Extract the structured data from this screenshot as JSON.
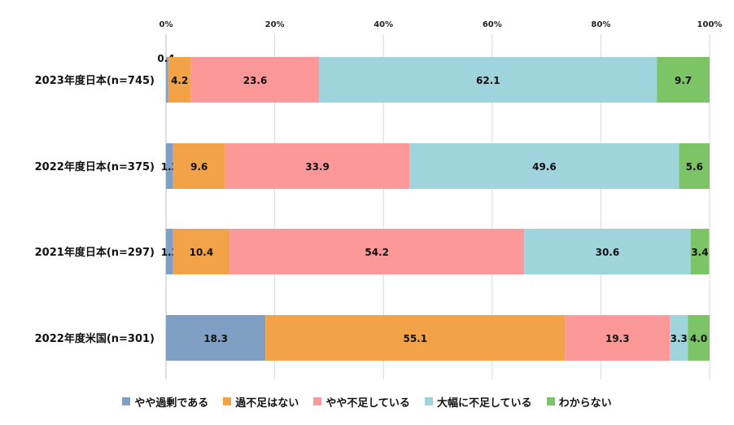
{
  "chart_data": {
    "type": "bar",
    "orientation": "horizontal",
    "stacked": true,
    "categories": [
      "2023年度日本(n=745)",
      "2022年度日本(n=375)",
      "2021年度日本(n=297)",
      "2022年度米国(n=301)"
    ],
    "xlim": [
      0,
      100
    ],
    "x_ticks": [
      "0%",
      "20%",
      "40%",
      "60%",
      "80%",
      "100%"
    ],
    "grid": true,
    "legend_position": "bottom",
    "series": [
      {
        "name": "やや過剰である",
        "color": "#7f9fc4",
        "values": [
          0.4,
          1.3,
          1.3,
          18.3
        ],
        "labels": [
          "0.4",
          "1.3",
          "1.3",
          "18.3"
        ]
      },
      {
        "name": "過不足はない",
        "color": "#f2a247",
        "values": [
          4.2,
          9.6,
          10.4,
          55.1
        ],
        "labels": [
          "4.2",
          "9.6",
          "10.4",
          "55.1"
        ]
      },
      {
        "name": "やや不足している",
        "color": "#fd9898",
        "values": [
          23.6,
          33.9,
          54.2,
          19.3
        ],
        "labels": [
          "23.6",
          "33.9",
          "54.2",
          "19.3"
        ]
      },
      {
        "name": "大幅に不足している",
        "color": "#9fd4dc",
        "values": [
          62.1,
          49.6,
          30.6,
          3.3
        ],
        "labels": [
          "62.1",
          "49.6",
          "30.6",
          "3.3"
        ]
      },
      {
        "name": "わからない",
        "color": "#7cc466",
        "values": [
          9.7,
          5.6,
          3.4,
          4.0
        ],
        "labels": [
          "9.7",
          "5.6",
          "3.4",
          "4.0"
        ]
      }
    ]
  }
}
